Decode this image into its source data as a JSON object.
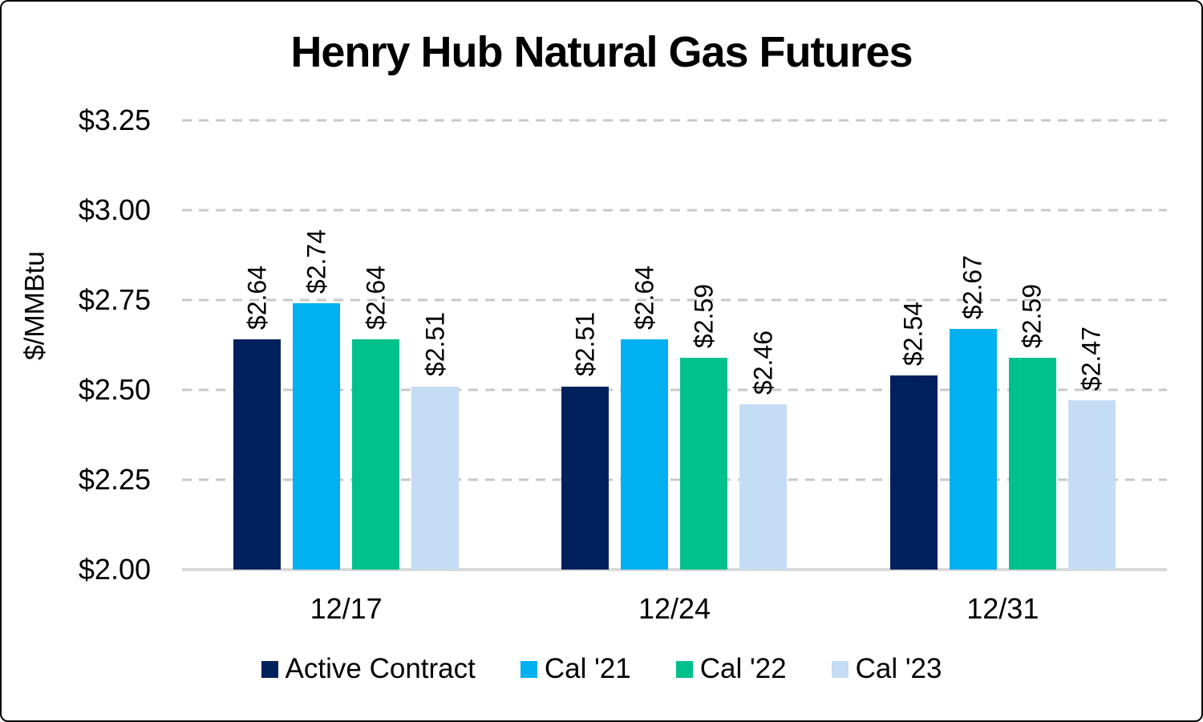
{
  "title": "Henry Hub Natural Gas Futures",
  "colors": {
    "background": "#FFFFFF",
    "frame_border": "#000000",
    "gridline": "#C8C8C8",
    "axis_line": "#D9D9D9",
    "text": "#000000"
  },
  "chart_data": {
    "type": "bar",
    "title": "Henry Hub Natural Gas Futures",
    "xlabel": "",
    "ylabel": "$/MMBtu",
    "ylim": [
      2.0,
      3.25
    ],
    "grid": "horizontal dashed",
    "legend_position": "bottom",
    "yticks": [
      {
        "label": "$3.25",
        "value": 3.25
      },
      {
        "label": "$3.00",
        "value": 3.0
      },
      {
        "label": "$2.75",
        "value": 2.75
      },
      {
        "label": "$2.50",
        "value": 2.5
      },
      {
        "label": "$2.25",
        "value": 2.25
      },
      {
        "label": "$2.00",
        "value": 2.0
      }
    ],
    "categories": [
      "12/17",
      "12/24",
      "12/31"
    ],
    "series": [
      {
        "name": "Active Contract",
        "color": "#02215C",
        "values": [
          2.64,
          2.51,
          2.54
        ],
        "labels": [
          "$2.64",
          "$2.51",
          "$2.54"
        ]
      },
      {
        "name": "Cal '21",
        "color": "#00B0F0",
        "values": [
          2.74,
          2.64,
          2.67
        ],
        "labels": [
          "$2.74",
          "$2.64",
          "$2.67"
        ]
      },
      {
        "name": "Cal '22",
        "color": "#00C08C",
        "values": [
          2.64,
          2.59,
          2.59
        ],
        "labels": [
          "$2.64",
          "$2.59",
          "$2.59"
        ]
      },
      {
        "name": "Cal '23",
        "color": "#C5DDF4",
        "values": [
          2.51,
          2.46,
          2.47
        ],
        "labels": [
          "$2.51",
          "$2.46",
          "$2.47"
        ]
      }
    ]
  }
}
